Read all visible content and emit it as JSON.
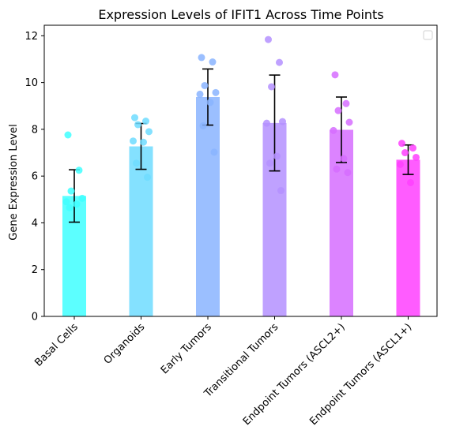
{
  "chart_data": {
    "type": "bar",
    "title": "Expression Levels of IFIT1 Across Time Points",
    "xlabel": "",
    "ylabel": "Gene Expression Level",
    "ylim": [
      0,
      12.45
    ],
    "yticks": [
      "0",
      "2",
      "4",
      "6",
      "8",
      "10",
      "12"
    ],
    "ytick_values": [
      0,
      2,
      4,
      6,
      8,
      10,
      12
    ],
    "categories": [
      "Basal Cells",
      "Organoids",
      "Early Tumors",
      "Transitional Tumors",
      "Endpoint Tumors (ASCL2+)",
      "Endpoint Tumors (ASCL1+)"
    ],
    "values": [
      5.15,
      7.27,
      9.38,
      8.27,
      7.98,
      6.7
    ],
    "error": [
      1.12,
      0.98,
      1.2,
      2.05,
      1.4,
      0.63
    ],
    "colors": [
      "#40ffff",
      "#6fdcff",
      "#8ab4ff",
      "#b491ff",
      "#d66dff",
      "#ff40ff"
    ],
    "points": [
      [
        7.76,
        6.25,
        5.36,
        5.05,
        4.9,
        4.8,
        4.65
      ],
      [
        8.5,
        8.35,
        8.2,
        7.9,
        7.5,
        7.45,
        6.55,
        5.95
      ],
      [
        11.07,
        10.88,
        9.87,
        9.57,
        9.5,
        9.15,
        8.15,
        7.02
      ],
      [
        11.84,
        10.86,
        9.82,
        8.33,
        8.26,
        6.85,
        6.55,
        5.38
      ],
      [
        10.33,
        9.1,
        8.8,
        8.3,
        7.95,
        6.75,
        6.3,
        6.15
      ],
      [
        7.4,
        7.2,
        7.0,
        6.8,
        6.5,
        5.72
      ]
    ],
    "legend": {
      "position": "top-right",
      "entries": []
    },
    "grid": false
  }
}
